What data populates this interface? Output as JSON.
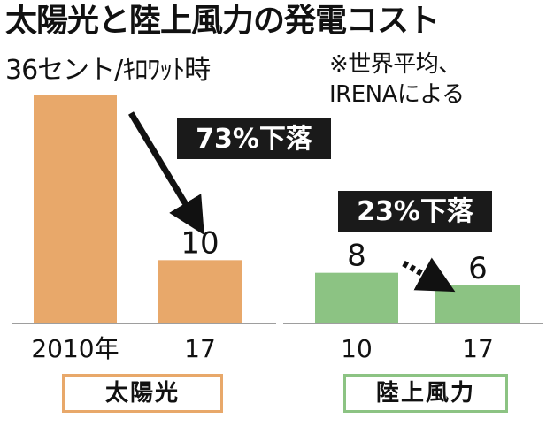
{
  "chart_data": {
    "type": "bar",
    "title": "太陽光と陸上風力の発電コスト",
    "unit_label": "36セント/ｷﾛﾜｯﾄ時",
    "note": "※世界平均、\nIRENAによる",
    "groups": [
      {
        "name": "太陽光",
        "categories": [
          "2010年",
          "17"
        ],
        "values": [
          36,
          10
        ],
        "value_labels": [
          "",
          "10"
        ],
        "annotation": "73%下落",
        "color": "#e8a86a"
      },
      {
        "name": "陸上風力",
        "categories": [
          "10",
          "17"
        ],
        "values": [
          8,
          6
        ],
        "value_labels": [
          "8",
          "6"
        ],
        "annotation": "23%下落",
        "color": "#8cc383"
      }
    ],
    "ylim": [
      0,
      36
    ],
    "grid": false
  }
}
